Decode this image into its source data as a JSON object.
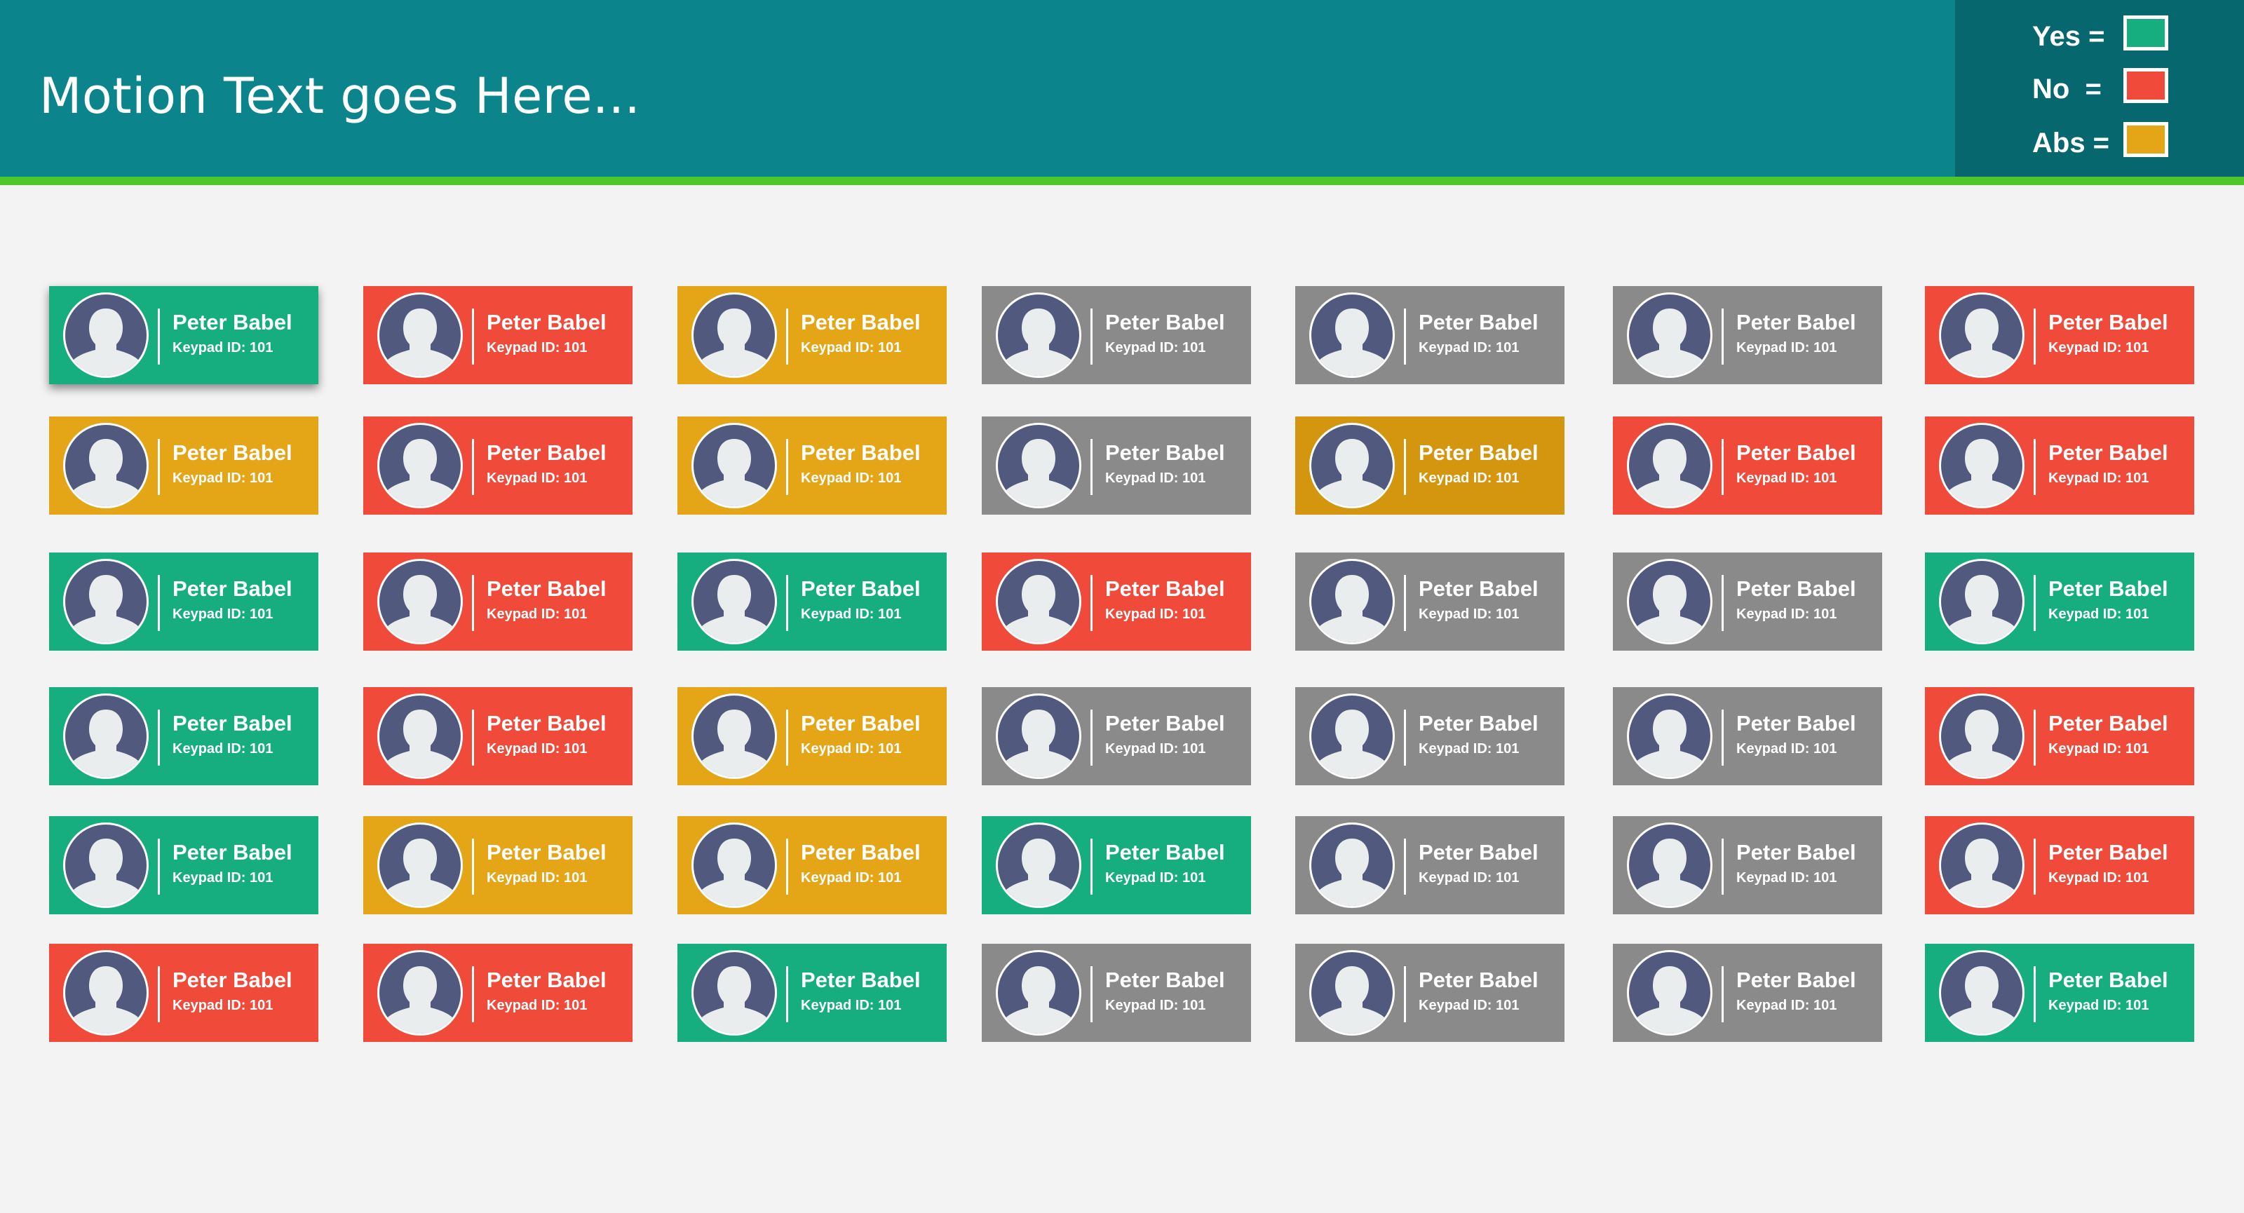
{
  "header": {
    "motion_text": "Motion Text goes Here..."
  },
  "legend": [
    {
      "label": "Yes =",
      "color": "#16ae7e"
    },
    {
      "label": "No  =",
      "color": "#f04a3b"
    },
    {
      "label": "Abs =",
      "color": "#e4a616"
    }
  ],
  "status_colors": {
    "yes": "#16ae7e",
    "no": "#f04a3b",
    "abs": "#e4a616",
    "none": "#8a8a8a",
    "abs_dark": "#d4960f"
  },
  "icons": {
    "avatar": "user-silhouette-icon",
    "legend_swatch": "color-swatch"
  },
  "attendees": {
    "columns": 7,
    "cards": [
      {
        "name": "Peter Babel",
        "keypad": "Keypad ID: 101",
        "status": "yes",
        "selected": true
      },
      {
        "name": "Peter Babel",
        "keypad": "Keypad ID: 101",
        "status": "no"
      },
      {
        "name": "Peter Babel",
        "keypad": "Keypad ID: 101",
        "status": "abs"
      },
      {
        "name": "Peter Babel",
        "keypad": "Keypad ID: 101",
        "status": "none"
      },
      {
        "name": "Peter Babel",
        "keypad": "Keypad ID: 101",
        "status": "none"
      },
      {
        "name": "Peter Babel",
        "keypad": "Keypad ID: 101",
        "status": "none"
      },
      {
        "name": "Peter Babel",
        "keypad": "Keypad ID: 101",
        "status": "no"
      },
      {
        "name": "Peter Babel",
        "keypad": "Keypad ID: 101",
        "status": "abs"
      },
      {
        "name": "Peter Babel",
        "keypad": "Keypad ID: 101",
        "status": "no"
      },
      {
        "name": "Peter Babel",
        "keypad": "Keypad ID: 101",
        "status": "abs"
      },
      {
        "name": "Peter Babel",
        "keypad": "Keypad ID: 101",
        "status": "none"
      },
      {
        "name": "Peter Babel",
        "keypad": "Keypad ID: 101",
        "status": "abs_dark"
      },
      {
        "name": "Peter Babel",
        "keypad": "Keypad ID: 101",
        "status": "no"
      },
      {
        "name": "Peter Babel",
        "keypad": "Keypad ID: 101",
        "status": "no"
      },
      {
        "name": "Peter Babel",
        "keypad": "Keypad ID: 101",
        "status": "yes"
      },
      {
        "name": "Peter Babel",
        "keypad": "Keypad ID: 101",
        "status": "no"
      },
      {
        "name": "Peter Babel",
        "keypad": "Keypad ID: 101",
        "status": "yes"
      },
      {
        "name": "Peter Babel",
        "keypad": "Keypad ID: 101",
        "status": "no"
      },
      {
        "name": "Peter Babel",
        "keypad": "Keypad ID: 101",
        "status": "none"
      },
      {
        "name": "Peter Babel",
        "keypad": "Keypad ID: 101",
        "status": "none"
      },
      {
        "name": "Peter Babel",
        "keypad": "Keypad ID: 101",
        "status": "yes"
      },
      {
        "name": "Peter Babel",
        "keypad": "Keypad ID: 101",
        "status": "yes"
      },
      {
        "name": "Peter Babel",
        "keypad": "Keypad ID: 101",
        "status": "no"
      },
      {
        "name": "Peter Babel",
        "keypad": "Keypad ID: 101",
        "status": "abs"
      },
      {
        "name": "Peter Babel",
        "keypad": "Keypad ID: 101",
        "status": "none"
      },
      {
        "name": "Peter Babel",
        "keypad": "Keypad ID: 101",
        "status": "none"
      },
      {
        "name": "Peter Babel",
        "keypad": "Keypad ID: 101",
        "status": "none"
      },
      {
        "name": "Peter Babel",
        "keypad": "Keypad ID: 101",
        "status": "no"
      },
      {
        "name": "Peter Babel",
        "keypad": "Keypad ID: 101",
        "status": "yes"
      },
      {
        "name": "Peter Babel",
        "keypad": "Keypad ID: 101",
        "status": "abs"
      },
      {
        "name": "Peter Babel",
        "keypad": "Keypad ID: 101",
        "status": "abs"
      },
      {
        "name": "Peter Babel",
        "keypad": "Keypad ID: 101",
        "status": "yes"
      },
      {
        "name": "Peter Babel",
        "keypad": "Keypad ID: 101",
        "status": "none"
      },
      {
        "name": "Peter Babel",
        "keypad": "Keypad ID: 101",
        "status": "none"
      },
      {
        "name": "Peter Babel",
        "keypad": "Keypad ID: 101",
        "status": "no"
      },
      {
        "name": "Peter Babel",
        "keypad": "Keypad ID: 101",
        "status": "no"
      },
      {
        "name": "Peter Babel",
        "keypad": "Keypad ID: 101",
        "status": "no"
      },
      {
        "name": "Peter Babel",
        "keypad": "Keypad ID: 101",
        "status": "yes"
      },
      {
        "name": "Peter Babel",
        "keypad": "Keypad ID: 101",
        "status": "none"
      },
      {
        "name": "Peter Babel",
        "keypad": "Keypad ID: 101",
        "status": "none"
      },
      {
        "name": "Peter Babel",
        "keypad": "Keypad ID: 101",
        "status": "none"
      },
      {
        "name": "Peter Babel",
        "keypad": "Keypad ID: 101",
        "status": "yes"
      }
    ]
  }
}
